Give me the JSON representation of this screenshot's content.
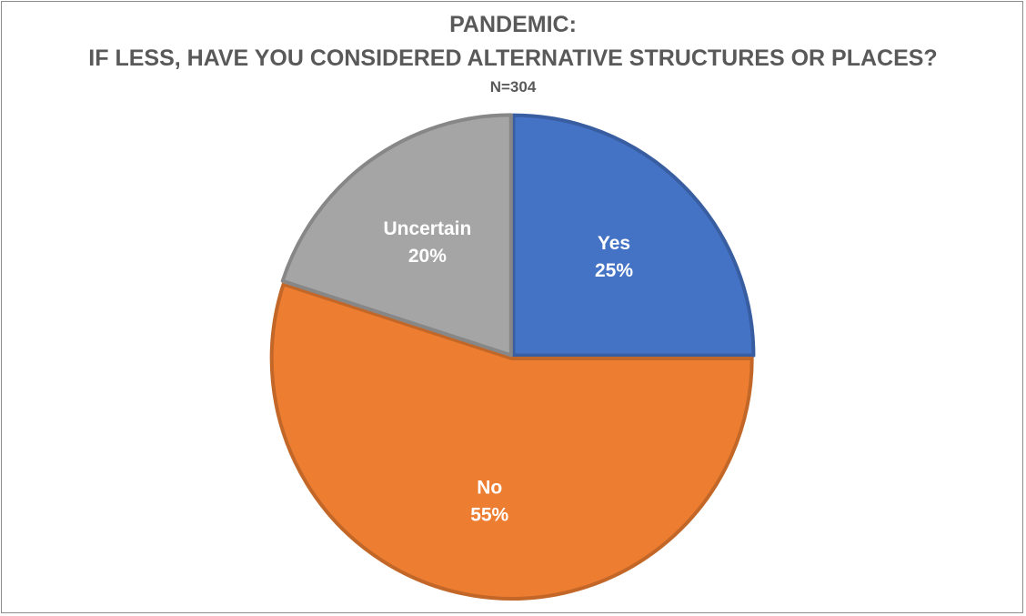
{
  "chart_data": {
    "type": "pie",
    "title": "PANDEMIC:",
    "title_line2": "IF LESS, HAVE YOU CONSIDERED ALTERNATIVE STRUCTURES OR PLACES?",
    "subtitle": "N=304",
    "slices": [
      {
        "label": "Yes",
        "value": 25,
        "value_label": "25%",
        "color": "#4472c4"
      },
      {
        "label": "No",
        "value": 55,
        "value_label": "55%",
        "color": "#ed7d31"
      },
      {
        "label": "Uncertain",
        "value": 20,
        "value_label": "20%",
        "color": "#a5a5a5"
      }
    ],
    "legend": "none",
    "data_labels": "inside"
  }
}
